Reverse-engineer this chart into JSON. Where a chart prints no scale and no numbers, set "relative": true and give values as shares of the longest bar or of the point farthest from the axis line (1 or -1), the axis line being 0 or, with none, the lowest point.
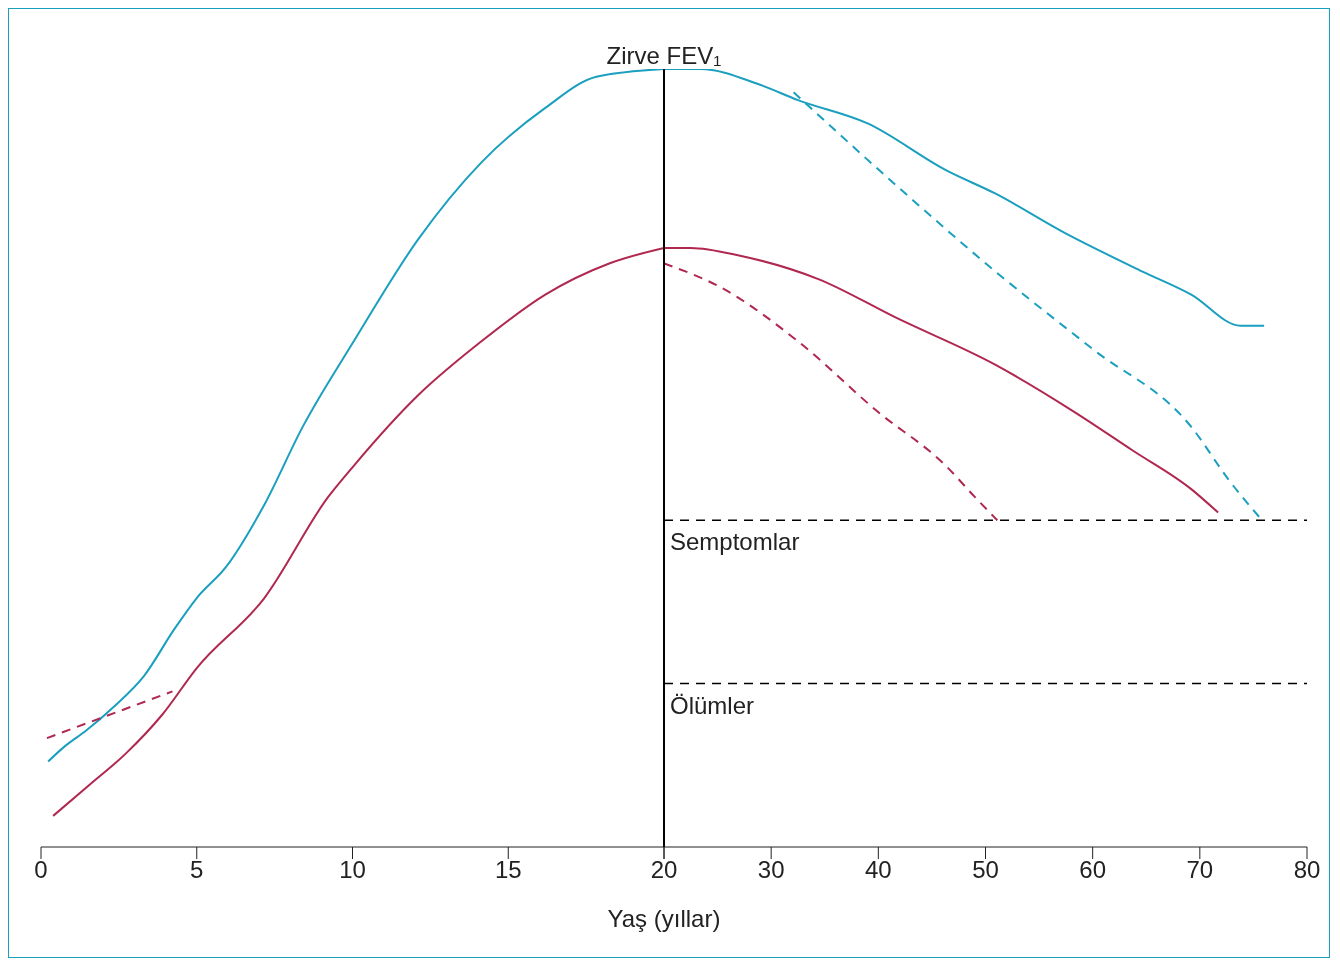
{
  "chart_data": [
    {
      "type": "line",
      "relative": true,
      "xlim": [
        0,
        20
      ],
      "xticks": [
        0,
        5,
        10,
        15,
        20
      ],
      "grid": false,
      "legend": false,
      "marker": "none",
      "series": [
        {
          "color": "#1a9fbf",
          "line_style": "solid",
          "x": [
            0.23,
            0.78,
            1.46,
            2.33,
            3.31,
            4.28,
            5,
            5.94,
            7.17,
            8.4,
            10.04,
            12.09,
            14.14,
            16.19,
            17.83,
            20
          ],
          "values": [
            0.11,
            0.13,
            0.15,
            0.18,
            0.22,
            0.28,
            0.32,
            0.36,
            0.44,
            0.54,
            0.65,
            0.78,
            0.88,
            0.95,
            0.99,
            1
          ]
        },
        {
          "color": "#b0284f",
          "line_style": "solid",
          "x": [
            0.39,
            1.56,
            2.72,
            3.89,
            5,
            7.17,
            9.22,
            10.04,
            12.09,
            14.14,
            16.19,
            18.24,
            20
          ],
          "values": [
            0.04,
            0.08,
            0.12,
            0.17,
            0.23,
            0.32,
            0.45,
            0.49,
            0.58,
            0.65,
            0.71,
            0.75,
            0.77
          ]
        },
        {
          "color": "#b0284f",
          "line_style": "dashed",
          "x": [
            0.19,
            4.22
          ],
          "values": [
            0.14,
            0.2
          ]
        }
      ]
    },
    {
      "type": "line",
      "relative": true,
      "xlabel": "Yaş (yıllar)",
      "xlim": [
        20,
        80
      ],
      "xticks": [
        {
          "value": 20,
          "label": null
        },
        30,
        40,
        50,
        60,
        70,
        80
      ],
      "grid": false,
      "legend": false,
      "marker": "none",
      "series": [
        {
          "color": "#1a9fbf",
          "line_style": "solid",
          "x": [
            20,
            23.4,
            28.9,
            32.5,
            39,
            46.3,
            50.9,
            57.3,
            64.6,
            69.2,
            73.8,
            76
          ],
          "values": [
            1,
            1,
            0.98,
            0.96,
            0.93,
            0.87,
            0.84,
            0.79,
            0.74,
            0.71,
            0.67,
            0.67
          ]
        },
        {
          "color": "#1a9fbf",
          "line_style": "dashed",
          "x": [
            32.1,
            41.7,
            50.9,
            60,
            69.2,
            72.8,
            75.8
          ],
          "values": [
            0.97,
            0.85,
            0.74,
            0.64,
            0.54,
            0.47,
            0.42
          ]
        },
        {
          "color": "#b0284f",
          "line_style": "solid",
          "x": [
            20,
            22.5,
            27.1,
            34.4,
            41.7,
            50.9,
            58.2,
            63.7,
            69.2,
            71.7
          ],
          "values": [
            0.77,
            0.77,
            0.76,
            0.73,
            0.68,
            0.62,
            0.56,
            0.51,
            0.46,
            0.43
          ]
        },
        {
          "color": "#b0284f",
          "line_style": "dashed",
          "x": [
            20,
            25.2,
            32.5,
            39.9,
            46.3,
            49,
            51.1
          ],
          "values": [
            0.75,
            0.72,
            0.65,
            0.56,
            0.49,
            0.45,
            0.42
          ]
        }
      ],
      "ref_lines": [
        {
          "axis": "x",
          "value": 20,
          "label": "Zirve FEV₁",
          "color": "#000000",
          "line_style": "solid"
        },
        {
          "axis": "y",
          "value": 0.42,
          "label": "Semptomlar",
          "color": "#000000",
          "line_style": "dashed"
        },
        {
          "axis": "y",
          "value": 0.21,
          "label": "Ölümler",
          "color": "#000000",
          "line_style": "dashed"
        }
      ]
    }
  ]
}
